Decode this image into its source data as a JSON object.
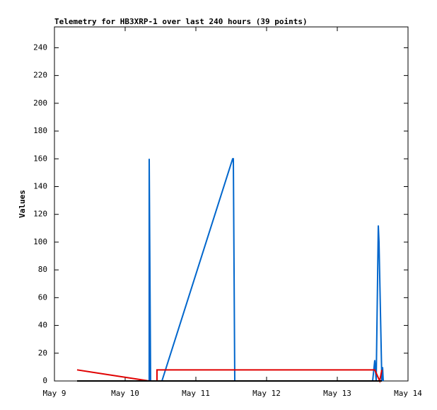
{
  "chart_data": {
    "type": "line",
    "title": "Telemetry for HB3XRP-1 over last 240 hours (39 points)",
    "y_label": "Values",
    "xlim": [
      9,
      14
    ],
    "xticks": [
      {
        "value": 9,
        "label": "May 9"
      },
      {
        "value": 10,
        "label": "May 10"
      },
      {
        "value": 11,
        "label": "May 11"
      },
      {
        "value": 12,
        "label": "May 12"
      },
      {
        "value": 13,
        "label": "May 13"
      },
      {
        "value": 14,
        "label": "May 14"
      }
    ],
    "ylim": [
      0,
      255
    ],
    "yticks": [
      0,
      20,
      40,
      60,
      80,
      100,
      120,
      140,
      160,
      180,
      200,
      220,
      240
    ],
    "series": [
      {
        "color": "#0066cc",
        "x": [
          10.34,
          10.34,
          10.35,
          10.36,
          10.52,
          11.52,
          11.53,
          11.54,
          11.55,
          13.5,
          13.53,
          13.55,
          13.58,
          13.59,
          13.61,
          13.63,
          13.64,
          13.65
        ],
        "values": [
          0,
          160,
          80,
          0,
          0,
          160,
          160,
          80,
          0,
          0,
          15,
          0,
          112,
          100,
          50,
          0,
          10,
          0
        ]
      },
      {
        "color": "#e00000",
        "x": [
          9.32,
          10.34,
          10.45,
          10.45,
          13.5,
          13.53,
          13.6,
          13.63
        ],
        "values": [
          8,
          0,
          0,
          8,
          8,
          8,
          0,
          8
        ]
      },
      {
        "color": "#000000",
        "x": [
          9.32,
          13.63
        ],
        "values": [
          0,
          0
        ]
      }
    ]
  }
}
